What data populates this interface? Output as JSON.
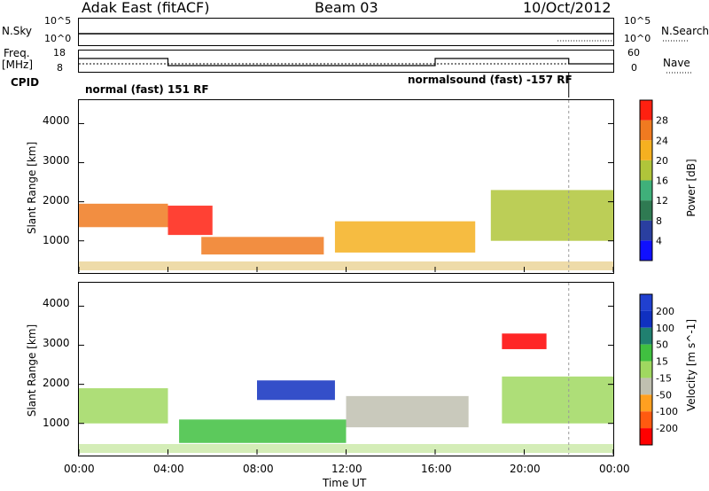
{
  "header": {
    "station": "Adak East (fitACF)",
    "beam": "Beam 03",
    "date": "10/Oct/2012"
  },
  "top_panels": {
    "nsky_label": "N.Sky",
    "nsky_ticks": [
      "10^5",
      "10^0"
    ],
    "nsearch_label": "N.Search",
    "nsearch_ticks": [
      "10^5",
      "10^0"
    ],
    "freq_label_1": "Freq.",
    "freq_label_2": "[MHz]",
    "freq_ticks": [
      "18",
      "8"
    ],
    "nave_label": "Nave",
    "nave_ticks": [
      "60",
      "0"
    ],
    "cpid_label": "CPID",
    "cpid_1": "normal (fast) 151 RF",
    "cpid_2": "normalsound (fast) -157 RF"
  },
  "colors": {
    "power_scale": [
      "#1010ff",
      "#2a3fa0",
      "#2f7a52",
      "#3fb07a",
      "#b0c53a",
      "#f5b020",
      "#f07a20",
      "#ff2010"
    ],
    "velocity_scale": [
      "#ff0000",
      "#ff5a10",
      "#ffa020",
      "#c0c0b0",
      "#a0d860",
      "#40c040",
      "#208070",
      "#1030c0",
      "#2040d0"
    ]
  },
  "chart_data": [
    {
      "type": "heatmap",
      "title": "",
      "xlabel": "Time UT",
      "ylabel": "Slant Range [km]",
      "x_ticks": [
        "00:00",
        "04:00",
        "08:00",
        "12:00",
        "16:00",
        "20:00",
        "00:00"
      ],
      "y_ticks": [
        "1000",
        "2000",
        "3000",
        "4000"
      ],
      "ylim": [
        200,
        4600
      ],
      "colorbar_label": "Power [dB]",
      "colorbar_ticks": [
        "4",
        "8",
        "12",
        "16",
        "20",
        "24",
        "28"
      ],
      "colorbar_range": [
        0,
        32
      ],
      "echo_bands": [
        {
          "t_start": 0.0,
          "t_end": 4.0,
          "range_low": 1350,
          "range_high": 1950,
          "power_db": 26
        },
        {
          "t_start": 4.0,
          "t_end": 6.0,
          "range_low": 1150,
          "range_high": 1900,
          "power_db": 28
        },
        {
          "t_start": 5.5,
          "t_end": 11.0,
          "range_low": 650,
          "range_high": 1100,
          "power_db": 26
        },
        {
          "t_start": 11.5,
          "t_end": 17.8,
          "range_low": 700,
          "range_high": 1500,
          "power_db": 20
        },
        {
          "t_start": 18.5,
          "t_end": 24.0,
          "range_low": 1000,
          "range_high": 2300,
          "power_db": 18
        }
      ]
    },
    {
      "type": "heatmap",
      "title": "",
      "xlabel": "Time UT",
      "ylabel": "Slant Range [km]",
      "x_ticks": [
        "00:00",
        "04:00",
        "08:00",
        "12:00",
        "16:00",
        "20:00",
        "00:00"
      ],
      "y_ticks": [
        "1000",
        "2000",
        "3000",
        "4000"
      ],
      "ylim": [
        200,
        4600
      ],
      "colorbar_label": "Velocity [m s^-1]",
      "colorbar_ticks": [
        "200",
        "100",
        "50",
        "15",
        "-15",
        "-50",
        "-100",
        "-200"
      ],
      "colorbar_range": [
        -250,
        250
      ],
      "echo_bands": [
        {
          "t_start": 0.0,
          "t_end": 4.0,
          "range_low": 1000,
          "range_high": 1900,
          "velocity": 0
        },
        {
          "t_start": 4.5,
          "t_end": 12.0,
          "range_low": 500,
          "range_high": 1100,
          "velocity": 40
        },
        {
          "t_start": 8.0,
          "t_end": 11.5,
          "range_low": 1600,
          "range_high": 2100,
          "velocity": 150
        },
        {
          "t_start": 12.0,
          "t_end": 17.5,
          "range_low": 900,
          "range_high": 1700,
          "velocity": -40
        },
        {
          "t_start": 19.0,
          "t_end": 21.0,
          "range_low": 2900,
          "range_high": 3300,
          "velocity": -200
        },
        {
          "t_start": 19.0,
          "t_end": 24.0,
          "range_low": 1000,
          "range_high": 2200,
          "velocity": 5
        }
      ]
    }
  ]
}
